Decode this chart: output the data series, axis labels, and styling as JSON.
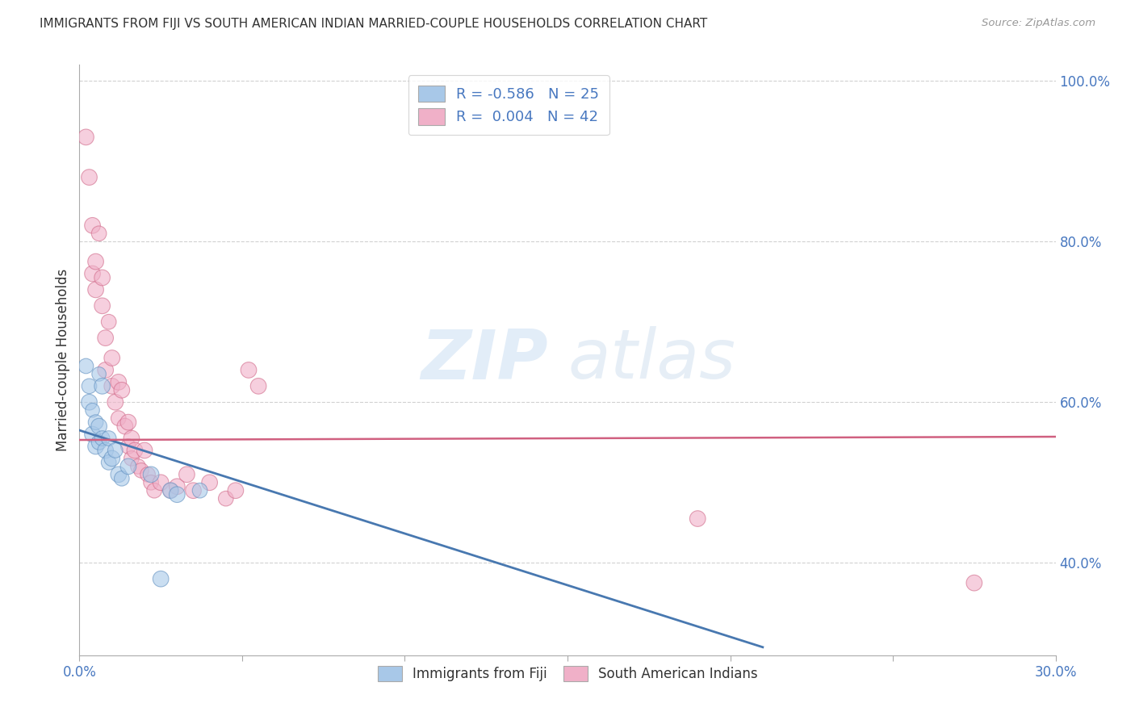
{
  "title": "IMMIGRANTS FROM FIJI VS SOUTH AMERICAN INDIAN MARRIED-COUPLE HOUSEHOLDS CORRELATION CHART",
  "source": "Source: ZipAtlas.com",
  "ylabel": "Married-couple Households",
  "xlim": [
    0.0,
    0.3
  ],
  "ylim": [
    0.285,
    1.02
  ],
  "yticks": [
    0.4,
    0.6,
    0.8,
    1.0
  ],
  "ytick_labels": [
    "40.0%",
    "60.0%",
    "80.0%",
    "100.0%"
  ],
  "xticks": [
    0.0,
    0.05,
    0.1,
    0.15,
    0.2,
    0.25,
    0.3
  ],
  "xtick_labels": [
    "0.0%",
    "",
    "",
    "",
    "",
    "",
    "30.0%"
  ],
  "fiji_color": "#a8c8e8",
  "fiji_edge_color": "#6090c0",
  "sa_color": "#f0b0c8",
  "sa_edge_color": "#d06888",
  "trend_fiji_color": "#4878b0",
  "trend_sa_color": "#d06080",
  "watermark_zip": "ZIP",
  "watermark_atlas": "atlas",
  "fiji_R": -0.586,
  "fiji_N": 25,
  "sa_R": 0.004,
  "sa_N": 42,
  "fiji_trend_x": [
    0.0,
    0.21
  ],
  "fiji_trend_y": [
    0.565,
    0.295
  ],
  "sa_trend_x": [
    0.0,
    0.3
  ],
  "sa_trend_y": [
    0.553,
    0.557
  ],
  "fiji_points": [
    [
      0.002,
      0.645
    ],
    [
      0.003,
      0.62
    ],
    [
      0.003,
      0.6
    ],
    [
      0.004,
      0.59
    ],
    [
      0.004,
      0.56
    ],
    [
      0.005,
      0.575
    ],
    [
      0.005,
      0.545
    ],
    [
      0.006,
      0.635
    ],
    [
      0.006,
      0.57
    ],
    [
      0.006,
      0.55
    ],
    [
      0.007,
      0.62
    ],
    [
      0.007,
      0.555
    ],
    [
      0.008,
      0.54
    ],
    [
      0.009,
      0.555
    ],
    [
      0.009,
      0.525
    ],
    [
      0.01,
      0.53
    ],
    [
      0.011,
      0.54
    ],
    [
      0.012,
      0.51
    ],
    [
      0.013,
      0.505
    ],
    [
      0.015,
      0.52
    ],
    [
      0.022,
      0.51
    ],
    [
      0.028,
      0.49
    ],
    [
      0.03,
      0.485
    ],
    [
      0.037,
      0.49
    ],
    [
      0.025,
      0.38
    ]
  ],
  "fiji_sizes": [
    180,
    180,
    200,
    160,
    200,
    180,
    200,
    160,
    200,
    180,
    200,
    180,
    200,
    180,
    180,
    200,
    180,
    200,
    180,
    200,
    200,
    200,
    200,
    180,
    200
  ],
  "sa_points": [
    [
      0.002,
      0.93
    ],
    [
      0.003,
      0.88
    ],
    [
      0.004,
      0.82
    ],
    [
      0.004,
      0.76
    ],
    [
      0.005,
      0.775
    ],
    [
      0.005,
      0.74
    ],
    [
      0.006,
      0.81
    ],
    [
      0.007,
      0.755
    ],
    [
      0.007,
      0.72
    ],
    [
      0.008,
      0.68
    ],
    [
      0.008,
      0.64
    ],
    [
      0.009,
      0.7
    ],
    [
      0.01,
      0.655
    ],
    [
      0.01,
      0.62
    ],
    [
      0.011,
      0.6
    ],
    [
      0.012,
      0.625
    ],
    [
      0.012,
      0.58
    ],
    [
      0.013,
      0.615
    ],
    [
      0.014,
      0.57
    ],
    [
      0.015,
      0.575
    ],
    [
      0.015,
      0.545
    ],
    [
      0.016,
      0.555
    ],
    [
      0.016,
      0.53
    ],
    [
      0.017,
      0.54
    ],
    [
      0.018,
      0.52
    ],
    [
      0.019,
      0.515
    ],
    [
      0.02,
      0.54
    ],
    [
      0.021,
      0.51
    ],
    [
      0.022,
      0.5
    ],
    [
      0.023,
      0.49
    ],
    [
      0.025,
      0.5
    ],
    [
      0.028,
      0.49
    ],
    [
      0.03,
      0.495
    ],
    [
      0.033,
      0.51
    ],
    [
      0.035,
      0.49
    ],
    [
      0.04,
      0.5
    ],
    [
      0.045,
      0.48
    ],
    [
      0.048,
      0.49
    ],
    [
      0.052,
      0.64
    ],
    [
      0.055,
      0.62
    ],
    [
      0.19,
      0.455
    ],
    [
      0.275,
      0.375
    ]
  ],
  "sa_sizes": [
    200,
    200,
    200,
    200,
    200,
    200,
    180,
    200,
    200,
    200,
    200,
    180,
    200,
    200,
    200,
    200,
    180,
    200,
    200,
    200,
    180,
    200,
    180,
    200,
    180,
    180,
    200,
    180,
    180,
    180,
    200,
    180,
    200,
    200,
    200,
    200,
    180,
    200,
    200,
    200,
    200,
    200
  ]
}
